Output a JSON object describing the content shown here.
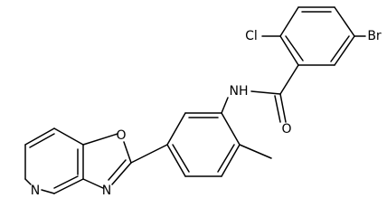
{
  "atoms": {
    "cl": "Cl",
    "br": "Br",
    "nh": "NH",
    "carbonyl_o": "O",
    "oxazole_o": "O",
    "oxazole_n": "N",
    "pyridine_n": "N"
  }
}
